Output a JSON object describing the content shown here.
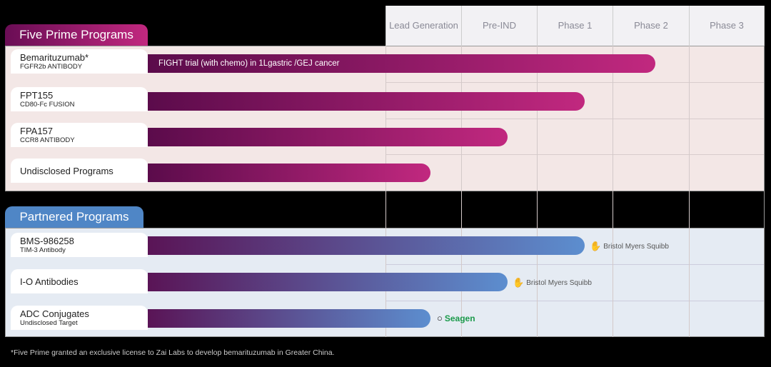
{
  "phases": [
    "Lead Generation",
    "Pre-IND",
    "Phase 1",
    "Phase 2",
    "Phase 3"
  ],
  "five_prime": {
    "title": "Five Prime Programs",
    "programs": [
      {
        "name": "Bemarituzumab*",
        "sub": "FGFR2b ANTIBODY",
        "bar_label": "FIGHT trial (with chemo) in 1Lgastric /GEJ cancer",
        "stage": "Phase 2"
      },
      {
        "name": "FPT155",
        "sub": "CD80-Fc FUSION",
        "bar_label": "",
        "stage": "Phase 1"
      },
      {
        "name": "FPA157",
        "sub": "CCR8 ANTIBODY",
        "bar_label": "",
        "stage": "Pre-IND"
      },
      {
        "name": "Undisclosed Programs",
        "sub": "",
        "bar_label": "",
        "stage": "Lead Generation"
      }
    ]
  },
  "partnered": {
    "title": "Partnered Programs",
    "programs": [
      {
        "name": "BMS-986258",
        "sub": "TIM-3 Antibody",
        "partner": "Bristol Myers Squibb",
        "stage": "Phase 1"
      },
      {
        "name": "I-O Antibodies",
        "sub": "",
        "partner": "Bristol Myers Squibb",
        "stage": "Pre-IND"
      },
      {
        "name": "ADC Conjugates",
        "sub": "Undisclosed Target",
        "partner": "Seagen",
        "stage": "Lead Generation"
      }
    ]
  },
  "footnote": "*Five Prime granted an exclusive license to Zai Labs to develop bemarituzumab in Greater China.",
  "colors": {
    "five_prime": "#b0237a",
    "partnered": "#4f86c6"
  }
}
